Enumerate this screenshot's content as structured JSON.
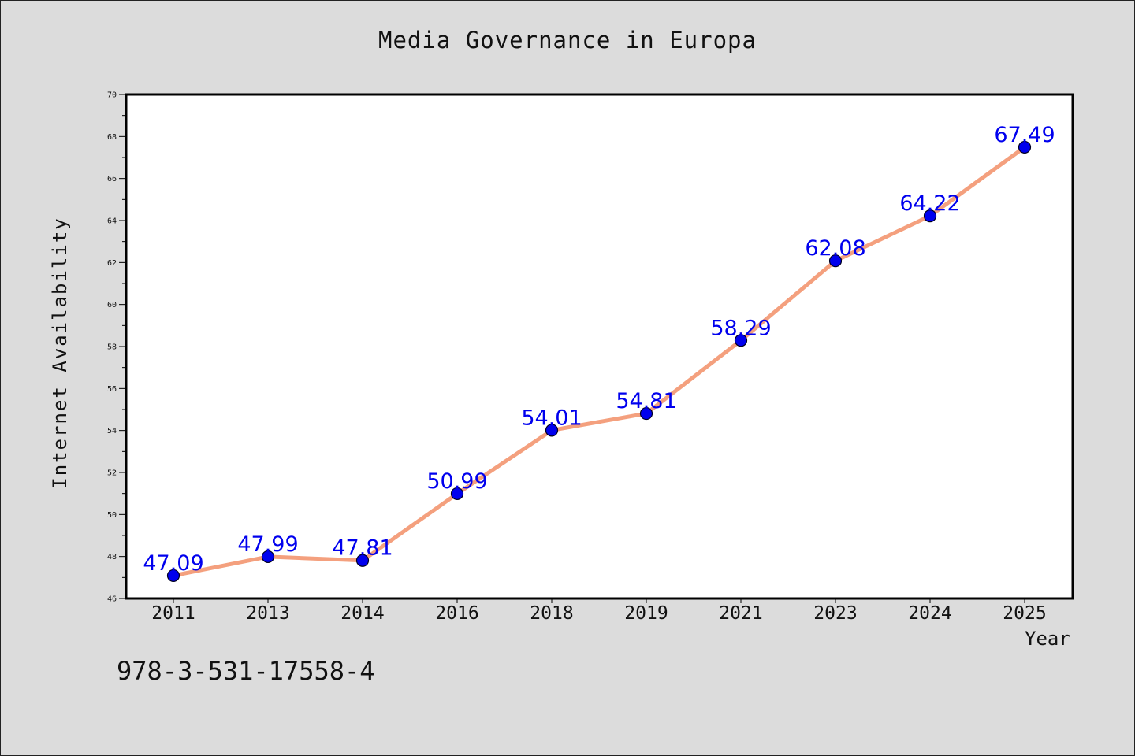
{
  "chart_data": {
    "type": "line",
    "title": "Media Governance in Europa",
    "xlabel": "Year",
    "ylabel": "Internet Availability",
    "categories": [
      "2011",
      "2013",
      "2014",
      "2016",
      "2018",
      "2019",
      "2021",
      "2023",
      "2024",
      "2025"
    ],
    "values": [
      47.09,
      47.99,
      47.81,
      50.99,
      54.01,
      54.81,
      58.29,
      62.08,
      64.22,
      67.49
    ],
    "data_labels": [
      "47.09",
      "47.99",
      "47.81",
      "50.99",
      "54.01",
      "54.81",
      "58.29",
      "62.08",
      "64.22",
      "67.49"
    ],
    "ylim": [
      46,
      70
    ],
    "yticks": [
      "46",
      "48",
      "50",
      "52",
      "54",
      "56",
      "58",
      "60",
      "62",
      "64",
      "66",
      "68",
      "70"
    ],
    "grid": false,
    "line_color": "#f4a07e",
    "marker_color": "#0000ee",
    "label_color": "#0000ee",
    "background_color": "#dcdcdc"
  },
  "footer": {
    "isbn": "978-3-531-17558-4"
  }
}
